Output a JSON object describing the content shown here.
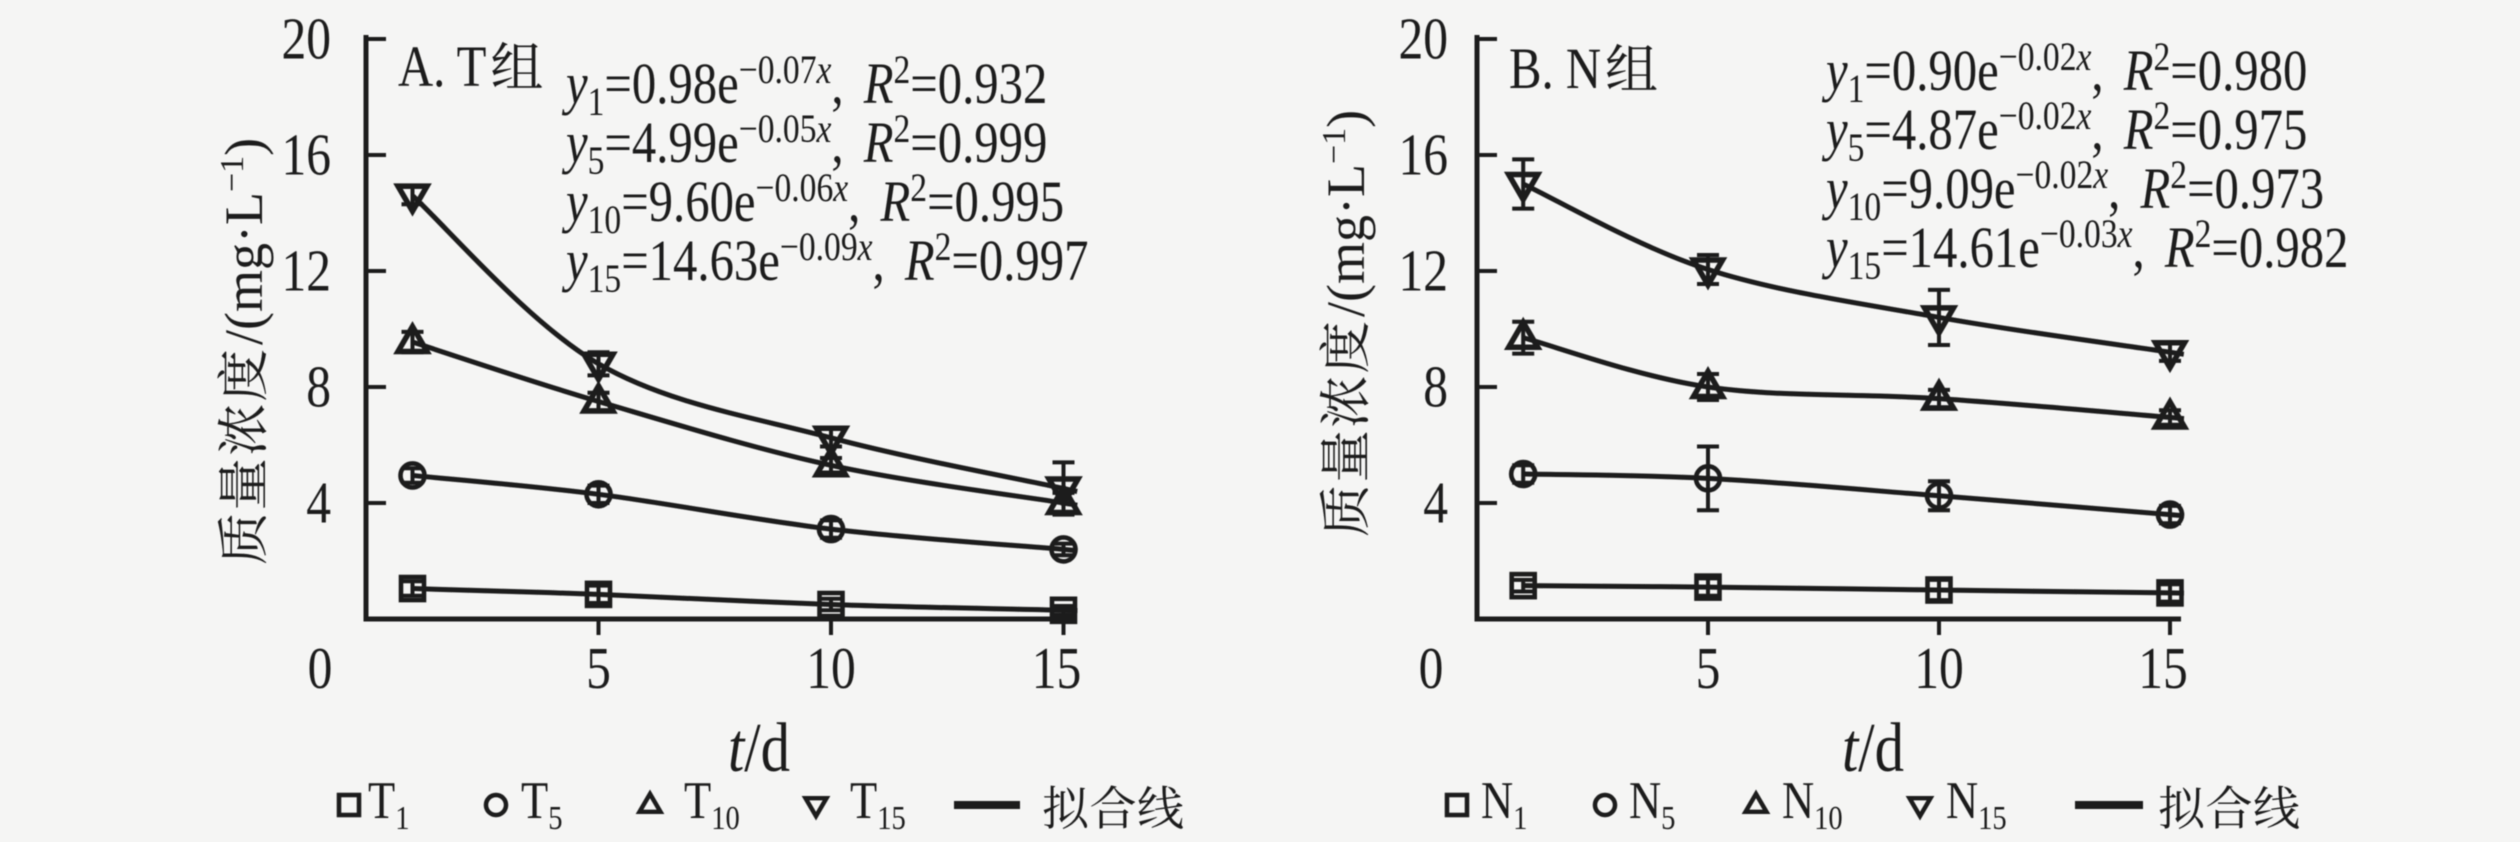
{
  "figure": {
    "background_color": "#f5f5f4",
    "ink_color": "#1c1c1c"
  },
  "chart_data": [
    {
      "type": "line",
      "panel_label": "A. T组",
      "xlabel": "t/d",
      "ylabel": "质量浓度/(mg·L⁻¹)",
      "xlim": [
        0,
        15.5
      ],
      "ylim": [
        0,
        20
      ],
      "xticks": [
        "0",
        "5",
        "10",
        "15"
      ],
      "yticks": [
        "4",
        "8",
        "12",
        "16",
        "20"
      ],
      "x": [
        1,
        5,
        10,
        15
      ],
      "series": [
        {
          "label": "T₁",
          "label_base": "T",
          "label_sub": "1",
          "marker": "square",
          "y": [
            1.05,
            0.85,
            0.5,
            0.3
          ],
          "yerr": [
            0.25,
            0.3,
            0.2,
            0.15
          ],
          "fit": {
            "a": "0.98",
            "b": "−0.07",
            "r2": "0.932"
          },
          "equation": "y₁=0.98e⁻⁰·⁰⁷ˣ, R²=0.932"
        },
        {
          "label": "T₅",
          "label_base": "T",
          "label_sub": "5",
          "marker": "circle",
          "y": [
            4.95,
            4.3,
            3.1,
            2.4
          ],
          "yerr": [
            0.25,
            0.3,
            0.3,
            0.2
          ],
          "fit": {
            "a": "4.99",
            "b": "−0.05",
            "r2": "0.999"
          },
          "equation": "y₅=4.99e⁻⁰·⁰⁵ˣ, R²=0.999"
        },
        {
          "label": "T₁₀",
          "label_base": "T",
          "label_sub": "10",
          "marker": "triangle-up",
          "y": [
            9.55,
            7.5,
            5.3,
            4.0
          ],
          "yerr": [
            0.35,
            0.3,
            0.25,
            0.35
          ],
          "fit": {
            "a": "9.60",
            "b": "−0.06",
            "r2": "0.995"
          },
          "equation": "y₁₀=9.60e⁻⁰·⁰⁶ˣ, R²=0.995"
        },
        {
          "label": "T₁₅",
          "label_base": "T",
          "label_sub": "15",
          "marker": "triangle-down",
          "y": [
            14.6,
            8.8,
            6.25,
            4.5
          ],
          "yerr": [
            0.3,
            0.4,
            0.3,
            0.9
          ],
          "fit": {
            "a": "14.63",
            "b": "−0.09",
            "r2": "0.997"
          },
          "equation": "y₁₅=14.63e⁻⁰·⁰⁹ˣ, R²=0.997"
        }
      ],
      "legend_line_label": "拟合线"
    },
    {
      "type": "line",
      "panel_label": "B. N组",
      "xlabel": "t/d",
      "ylabel": "质量浓度/(mg·L⁻¹)",
      "xlim": [
        0,
        15.5
      ],
      "ylim": [
        0,
        20
      ],
      "xticks": [
        "0",
        "5",
        "10",
        "15"
      ],
      "yticks": [
        "4",
        "8",
        "12",
        "16",
        "20"
      ],
      "x": [
        1,
        5,
        10,
        15
      ],
      "series": [
        {
          "label": "N₁",
          "label_base": "N",
          "label_sub": "1",
          "marker": "square",
          "y": [
            1.15,
            1.1,
            1.0,
            0.9
          ],
          "yerr": [
            0.2,
            0.3,
            0.35,
            0.3
          ],
          "fit": {
            "a": "0.90",
            "b": "−0.02",
            "r2": "0.980"
          },
          "equation": "y₁=0.90e⁻⁰·⁰²ˣ, R²=0.980"
        },
        {
          "label": "N₅",
          "label_base": "N",
          "label_sub": "5",
          "marker": "circle",
          "y": [
            5.0,
            4.85,
            4.25,
            3.6
          ],
          "yerr": [
            0.3,
            1.1,
            0.5,
            0.3
          ],
          "fit": {
            "a": "4.87",
            "b": "−0.02",
            "r2": "0.975"
          },
          "equation": "y₅=4.87e⁻⁰·⁰²ˣ, R²=0.975"
        },
        {
          "label": "N₁₀",
          "label_base": "N",
          "label_sub": "10",
          "marker": "triangle-up",
          "y": [
            9.7,
            8.0,
            7.6,
            6.95
          ],
          "yerr": [
            0.55,
            0.45,
            0.3,
            0.25
          ],
          "fit": {
            "a": "9.09",
            "b": "−0.02",
            "r2": "0.973"
          },
          "equation": "y₁₀=9.09e⁻⁰·⁰²ˣ, R²=0.973"
        },
        {
          "label": "N₁₅",
          "label_base": "N",
          "label_sub": "15",
          "marker": "triangle-down",
          "y": [
            15.0,
            12.05,
            10.4,
            9.2
          ],
          "yerr": [
            0.85,
            0.5,
            0.95,
            0.3
          ],
          "fit": {
            "a": "14.61",
            "b": "−0.03",
            "r2": "0.982"
          },
          "equation": "y₁₅=14.61e⁻⁰·⁰³ˣ, R²=0.982"
        }
      ],
      "legend_line_label": "拟合线"
    }
  ]
}
